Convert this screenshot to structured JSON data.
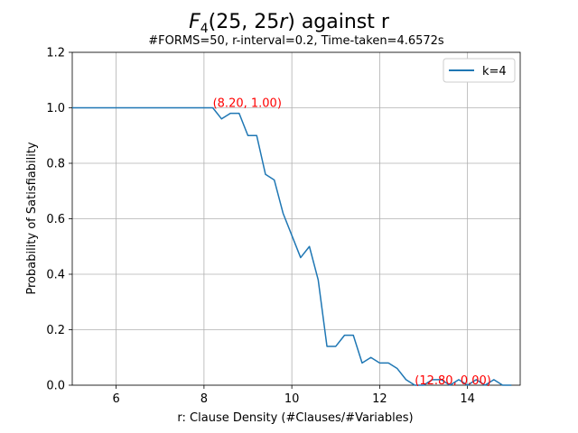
{
  "chart_data": {
    "type": "line",
    "title": "F₄(25, 25r) against r",
    "title_parts": {
      "f": "F",
      "sub": "4",
      "rest_a": "(25, 25",
      "r": "r",
      "rest_b": ") against r"
    },
    "subtitle": "#FORMS=50, r-interval=0.2, Time-taken=4.6572s",
    "xlabel": "r: Clause Density (#Clauses/#Variables)",
    "ylabel": "Probability of Satisfiability",
    "xlim": [
      5.0,
      15.2
    ],
    "ylim": [
      0.0,
      1.2
    ],
    "xticks": [
      6,
      8,
      10,
      12,
      14
    ],
    "yticks": [
      0.0,
      0.2,
      0.4,
      0.6,
      0.8,
      1.0,
      1.2
    ],
    "grid": true,
    "legend_position": "top-right",
    "series": [
      {
        "name": "k=4",
        "color": "#1f77b4",
        "x": [
          5.0,
          5.2,
          5.4,
          5.6,
          5.8,
          6.0,
          6.2,
          6.4,
          6.6,
          6.8,
          7.0,
          7.2,
          7.4,
          7.6,
          7.8,
          8.0,
          8.2,
          8.4,
          8.6,
          8.8,
          9.0,
          9.2,
          9.4,
          9.6,
          9.8,
          10.0,
          10.2,
          10.4,
          10.6,
          10.8,
          11.0,
          11.2,
          11.4,
          11.6,
          11.8,
          12.0,
          12.2,
          12.4,
          12.6,
          12.8,
          13.0,
          13.2,
          13.4,
          13.6,
          13.8,
          14.0,
          14.2,
          14.4,
          14.6,
          14.8,
          15.0
        ],
        "y": [
          1.0,
          1.0,
          1.0,
          1.0,
          1.0,
          1.0,
          1.0,
          1.0,
          1.0,
          1.0,
          1.0,
          1.0,
          1.0,
          1.0,
          1.0,
          1.0,
          1.0,
          0.96,
          0.98,
          0.98,
          0.9,
          0.9,
          0.76,
          0.74,
          0.62,
          0.54,
          0.46,
          0.5,
          0.38,
          0.14,
          0.14,
          0.18,
          0.18,
          0.08,
          0.1,
          0.08,
          0.08,
          0.06,
          0.02,
          0.0,
          0.0,
          0.02,
          0.02,
          0.0,
          0.02,
          0.0,
          0.02,
          0.0,
          0.02,
          0.0,
          0.0
        ]
      }
    ],
    "annotations": [
      {
        "text": "(8.20, 1.00)",
        "x": 8.2,
        "y": 1.0,
        "color": "#ff0000"
      },
      {
        "text": "(12.80, 0.00)",
        "x": 12.8,
        "y": 0.0,
        "color": "#ff0000"
      }
    ]
  }
}
